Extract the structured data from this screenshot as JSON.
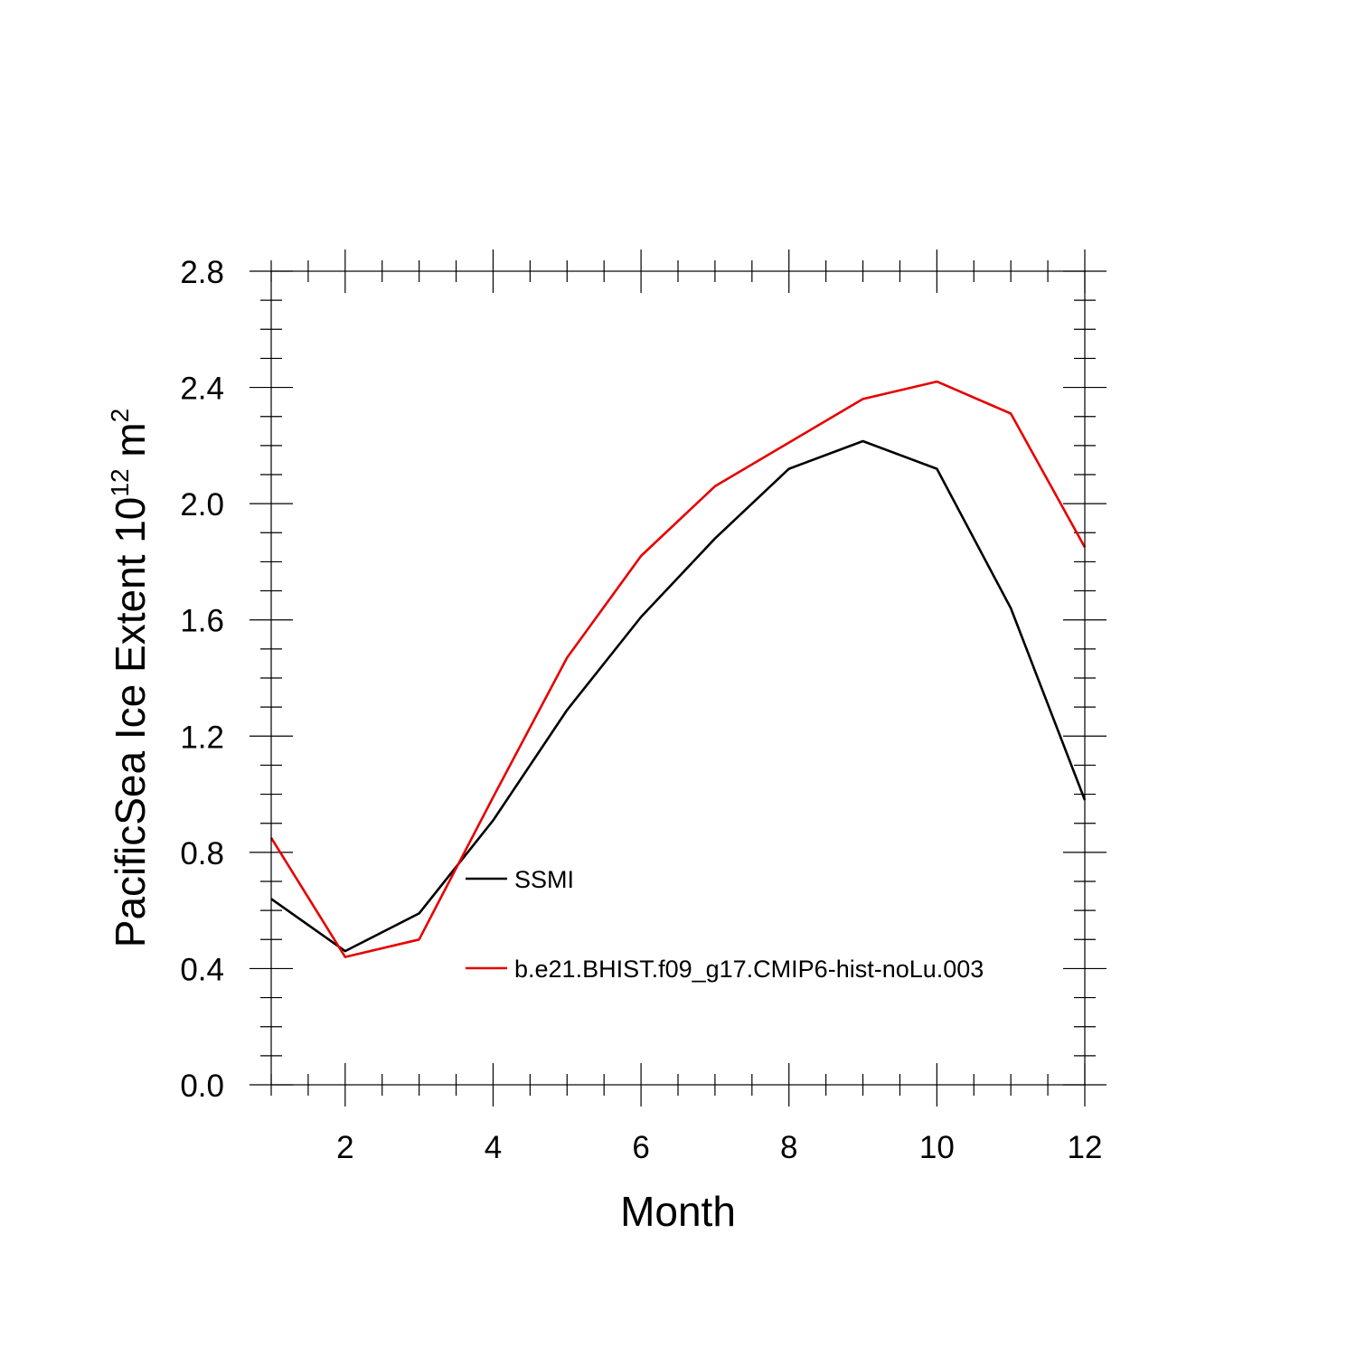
{
  "chart_data": {
    "type": "line",
    "xlabel": "Month",
    "ylabel_main": "PacificSea Ice Extent 10",
    "ylabel_exponent": "12",
    "ylabel_unit": " m",
    "ylabel_unit_exponent": "2",
    "xlim": [
      1,
      12
    ],
    "ylim": [
      0.0,
      2.8
    ],
    "x_ticks": [
      2,
      4,
      6,
      8,
      10,
      12
    ],
    "x_tick_labels": [
      "2",
      "4",
      "6",
      "8",
      "10",
      "12"
    ],
    "y_ticks": [
      0.0,
      0.4,
      0.8,
      1.2,
      1.6,
      2.0,
      2.4,
      2.8
    ],
    "y_tick_labels": [
      "0.0",
      "0.4",
      "0.8",
      "1.2",
      "1.6",
      "2.0",
      "2.4",
      "2.8"
    ],
    "grid": false,
    "legend_position": "inside, lower-middle",
    "x": [
      1,
      2,
      3,
      4,
      5,
      6,
      7,
      8,
      9,
      10,
      11,
      12
    ],
    "series": [
      {
        "name": "SSMI",
        "color": "#000000",
        "values": [
          0.64,
          0.46,
          0.59,
          0.91,
          1.29,
          1.61,
          1.88,
          2.12,
          2.215,
          2.12,
          1.64,
          0.98
        ]
      },
      {
        "name": "b.e21.BHIST.f09_g17.CMIP6-hist-noLu.003",
        "color": "#e60000",
        "values": [
          0.85,
          0.44,
          0.5,
          0.99,
          1.47,
          1.82,
          2.06,
          2.21,
          2.36,
          2.42,
          2.31,
          1.85
        ]
      }
    ]
  }
}
